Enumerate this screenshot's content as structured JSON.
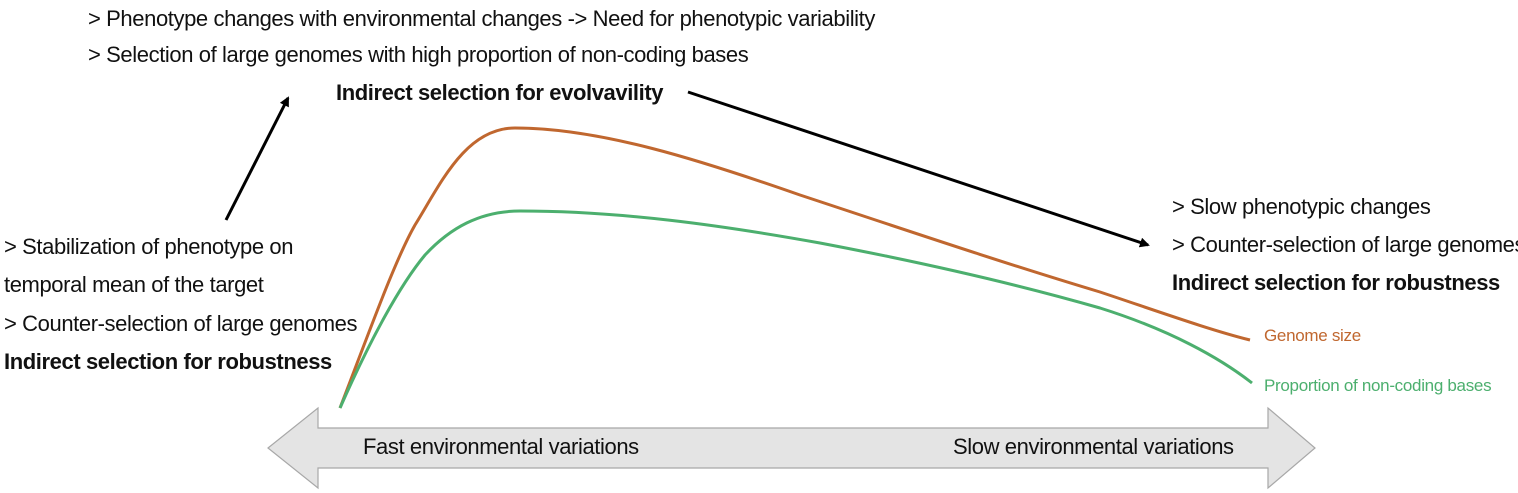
{
  "top": {
    "line1": "> Phenotype changes with environmental changes -> Need for phenotypic variability",
    "line2": "> Selection of large genomes with high proportion of non-coding bases",
    "heading": "Indirect selection for evolvavility"
  },
  "left": {
    "line1": "> Stabilization of phenotype on",
    "line2": "temporal mean of the target",
    "line3": "> Counter-selection of large genomes",
    "heading": "Indirect selection for robustness"
  },
  "right": {
    "line1": "> Slow phenotypic changes",
    "line2": "> Counter-selection of large genomes",
    "heading": "Indirect selection for robustness"
  },
  "curves": {
    "genome_size": {
      "label": "Genome size",
      "color": "#c0672f"
    },
    "noncoding": {
      "label": "Proportion of non-coding bases",
      "color": "#4caf6e"
    }
  },
  "axis": {
    "left_label": "Fast environmental variations",
    "right_label": "Slow environmental variations",
    "fill": "#e4e4e4",
    "stroke": "#a8a8a8"
  }
}
